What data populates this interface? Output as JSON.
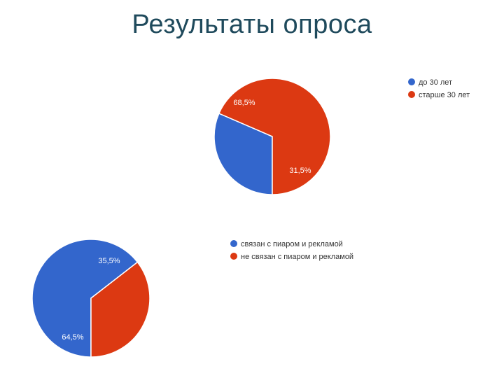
{
  "page": {
    "title": "Результаты опроса"
  },
  "chart_data": [
    {
      "type": "pie",
      "categories": [
        "до 30 лет",
        "старше 30 лет"
      ],
      "values": [
        31.5,
        68.5
      ],
      "labels": [
        "31,5%",
        "68,5%"
      ],
      "colors": [
        "#3366cc",
        "#dc3912"
      ],
      "legend_position": "top-right"
    },
    {
      "type": "pie",
      "categories": [
        "связан с пиаром и рекламой",
        "не связан с пиаром и рекламой"
      ],
      "values": [
        64.5,
        35.5
      ],
      "labels": [
        "64,5%",
        "35,5%"
      ],
      "colors": [
        "#3366cc",
        "#dc3912"
      ],
      "legend_position": "top-right"
    }
  ]
}
